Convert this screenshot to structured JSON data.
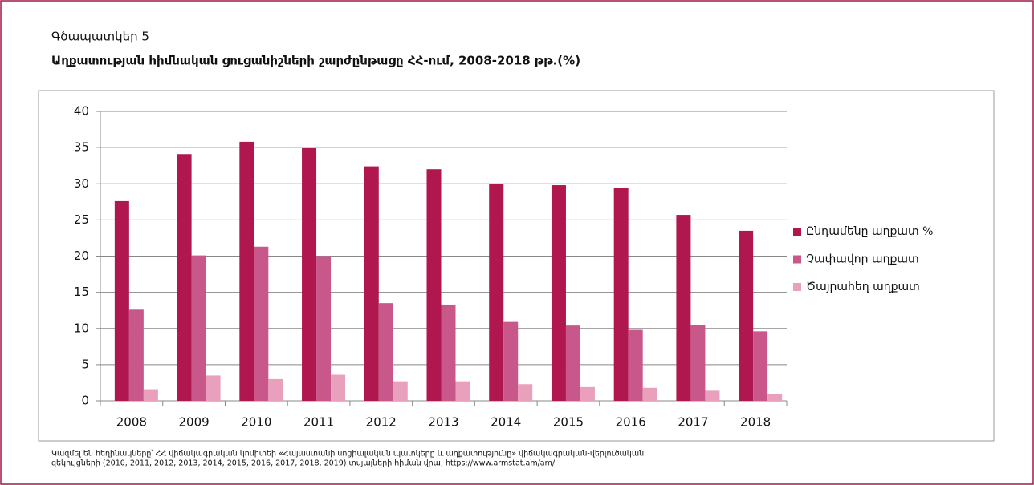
{
  "chart_data": {
    "type": "bar",
    "label": "Գծապատկեր 5",
    "title": "Աղքատության հիմնական ցուցանիշների շարժընթացը ՀՀ-ում, 2008-2018 թթ.(%)",
    "categories": [
      "2008",
      "2009",
      "2010",
      "2011",
      "2012",
      "2013",
      "2014",
      "2015",
      "2016",
      "2017",
      "2018"
    ],
    "series": [
      {
        "name": "Ընդամենը աղքատ %",
        "color": "#b0174f",
        "values": [
          27.6,
          34.1,
          35.8,
          35.0,
          32.4,
          32.0,
          30.0,
          29.8,
          29.4,
          25.7,
          23.5
        ]
      },
      {
        "name": "Չափավոր աղքատ",
        "color": "#c9588a",
        "values": [
          12.6,
          20.1,
          21.3,
          20.0,
          13.5,
          13.3,
          10.9,
          10.4,
          9.8,
          10.5,
          9.6
        ]
      },
      {
        "name": "Ծայրահեղ աղքատ",
        "color": "#e8a0bc",
        "values": [
          1.6,
          3.5,
          3.0,
          3.6,
          2.7,
          2.7,
          2.3,
          1.9,
          1.8,
          1.4,
          0.9
        ]
      }
    ],
    "ylim": [
      0,
      40
    ],
    "yticks": [
      0,
      5,
      10,
      15,
      20,
      25,
      30,
      35,
      40
    ],
    "grid": true,
    "legend": "right",
    "source": [
      "Կազմել են հեղինակները՝ ՀՀ վիճակագրական կոմիտեի «Հայաստանի սոցիալական պատկերը և աղքատությունը» վիճակագրական-վերլուծական",
      "զեկույցների (2010, 2011,  2012, 2013, 2014, 2015, 2016, 2017, 2018, 2019) տվյալների հիման վրա, https://www.armstat.am/am/"
    ]
  }
}
